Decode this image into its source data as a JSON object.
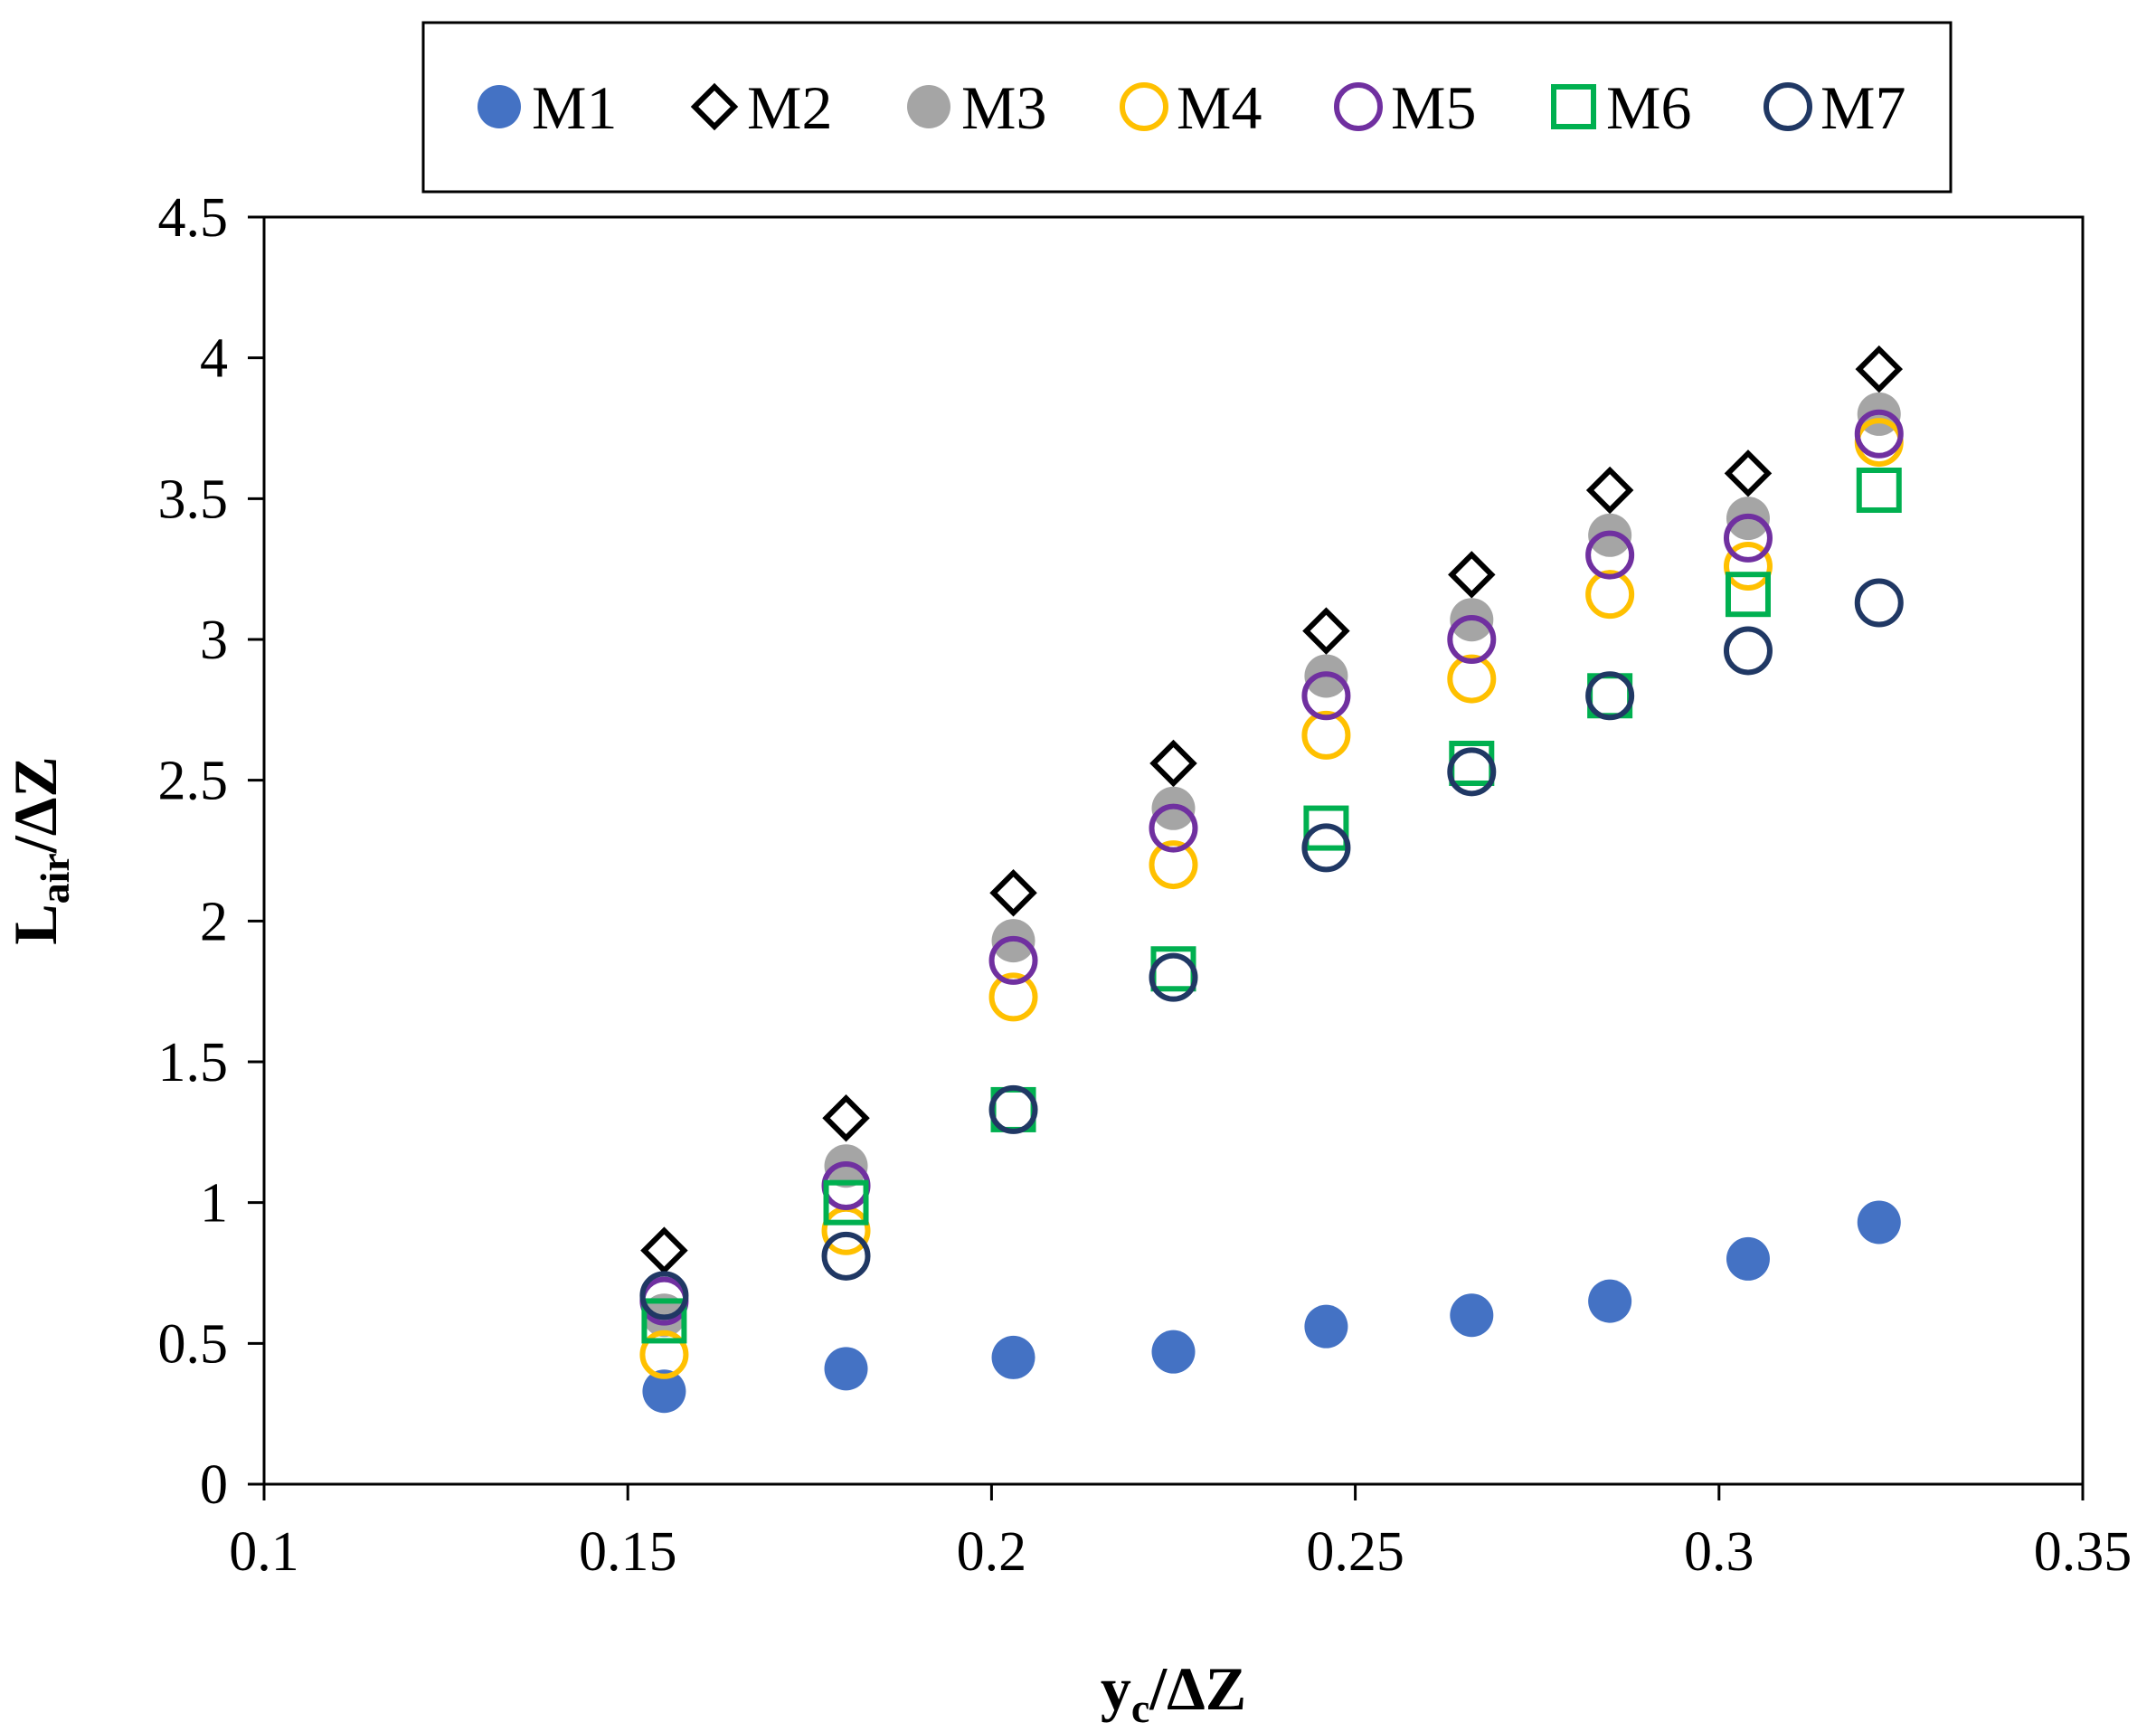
{
  "chart_data": {
    "type": "scatter",
    "title": "",
    "xlabel": {
      "main": "y",
      "sub": "c",
      "rest": "/ΔZ"
    },
    "ylabel": {
      "main": "L",
      "sub": "air",
      "rest": "/ΔZ"
    },
    "xlim": [
      0.1,
      0.35
    ],
    "ylim": [
      0,
      4.5
    ],
    "xticks": [
      0.1,
      0.15,
      0.2,
      0.25,
      0.3,
      0.35
    ],
    "xtick_labels": [
      "0.1",
      "0.15",
      "0.2",
      "0.25",
      "0.3",
      "0.35"
    ],
    "yticks": [
      0,
      0.5,
      1,
      1.5,
      2,
      2.5,
      3,
      3.5,
      4,
      4.5
    ],
    "ytick_labels": [
      "0",
      "0.5",
      "1",
      "1.5",
      "2",
      "2.5",
      "3",
      "3.5",
      "4",
      "4.5"
    ],
    "grid": false,
    "legend_position": "top",
    "x": [
      0.155,
      0.18,
      0.203,
      0.225,
      0.246,
      0.266,
      0.285,
      0.304,
      0.322
    ],
    "series": [
      {
        "name": "M1",
        "marker": "circle",
        "filled": true,
        "color": "#4472C4",
        "values": [
          0.33,
          0.41,
          0.45,
          0.47,
          0.56,
          0.6,
          0.65,
          0.8,
          0.93
        ]
      },
      {
        "name": "M2",
        "marker": "diamond",
        "filled": false,
        "color": "#000000",
        "values": [
          0.83,
          1.3,
          2.1,
          2.56,
          3.03,
          3.23,
          3.53,
          3.59,
          3.96
        ]
      },
      {
        "name": "M3",
        "marker": "circle",
        "filled": true,
        "color": "#A5A5A5",
        "values": [
          0.6,
          1.13,
          1.93,
          2.4,
          2.87,
          3.07,
          3.37,
          3.43,
          3.8
        ]
      },
      {
        "name": "M4",
        "marker": "circle",
        "filled": false,
        "color": "#FFC000",
        "values": [
          0.46,
          0.9,
          1.73,
          2.2,
          2.66,
          2.86,
          3.16,
          3.26,
          3.7
        ]
      },
      {
        "name": "M5",
        "marker": "circle",
        "filled": false,
        "color": "#7030A0",
        "values": [
          0.65,
          1.06,
          1.86,
          2.33,
          2.8,
          3.0,
          3.3,
          3.36,
          3.73
        ]
      },
      {
        "name": "M6",
        "marker": "square",
        "filled": false,
        "color": "#00B050",
        "values": [
          0.58,
          1.0,
          1.33,
          1.83,
          2.33,
          2.56,
          2.8,
          3.16,
          3.53
        ]
      },
      {
        "name": "M7",
        "marker": "circle",
        "filled": false,
        "color": "#203864",
        "values": [
          0.67,
          0.81,
          1.33,
          1.8,
          2.26,
          2.53,
          2.8,
          2.96,
          3.13
        ]
      }
    ]
  }
}
